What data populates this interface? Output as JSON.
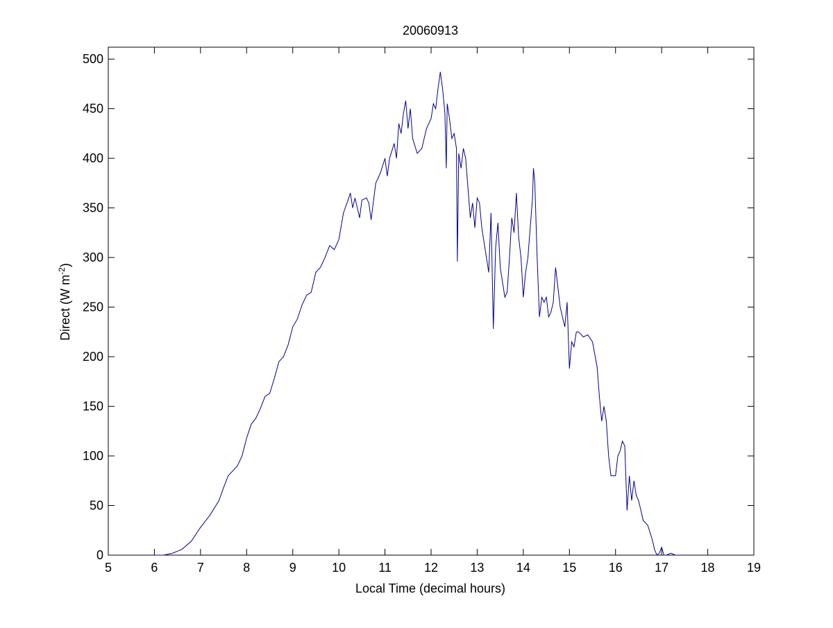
{
  "chart_data": {
    "type": "line",
    "title": "20060913",
    "xlabel": "Local Time (decimal hours)",
    "ylabel": [
      "Direct (W m",
      "-2",
      ")"
    ],
    "x": [
      6.0,
      6.2,
      6.4,
      6.6,
      6.8,
      7.0,
      7.2,
      7.4,
      7.5,
      7.6,
      7.8,
      7.9,
      8.0,
      8.1,
      8.2,
      8.3,
      8.4,
      8.5,
      8.6,
      8.7,
      8.8,
      8.9,
      9.0,
      9.1,
      9.2,
      9.3,
      9.4,
      9.5,
      9.6,
      9.7,
      9.8,
      9.9,
      10.0,
      10.1,
      10.2,
      10.25,
      10.3,
      10.35,
      10.45,
      10.5,
      10.6,
      10.65,
      10.7,
      10.8,
      10.9,
      11.0,
      11.05,
      11.1,
      11.2,
      11.25,
      11.3,
      11.35,
      11.4,
      11.45,
      11.5,
      11.55,
      11.6,
      11.7,
      11.8,
      11.9,
      12.0,
      12.05,
      12.1,
      12.15,
      12.2,
      12.25,
      12.3,
      12.33,
      12.35,
      12.4,
      12.45,
      12.5,
      12.55,
      12.57,
      12.6,
      12.65,
      12.7,
      12.75,
      12.8,
      12.85,
      12.9,
      12.95,
      13.0,
      13.05,
      13.1,
      13.2,
      13.25,
      13.3,
      13.35,
      13.4,
      13.45,
      13.5,
      13.6,
      13.65,
      13.7,
      13.75,
      13.8,
      13.85,
      13.9,
      13.95,
      14.0,
      14.05,
      14.1,
      14.15,
      14.2,
      14.22,
      14.25,
      14.3,
      14.35,
      14.4,
      14.45,
      14.5,
      14.55,
      14.6,
      14.65,
      14.7,
      14.75,
      14.8,
      14.85,
      14.9,
      14.95,
      15.0,
      15.05,
      15.1,
      15.15,
      15.2,
      15.3,
      15.4,
      15.5,
      15.6,
      15.65,
      15.7,
      15.75,
      15.8,
      15.85,
      15.9,
      16.0,
      16.05,
      16.1,
      16.15,
      16.2,
      16.25,
      16.3,
      16.35,
      16.4,
      16.45,
      16.5,
      16.55,
      16.6,
      16.7,
      16.8,
      16.85,
      16.9,
      16.95,
      17.0,
      17.05,
      17.1,
      17.2,
      17.3,
      17.35
    ],
    "values": [
      0,
      0,
      2,
      6,
      14,
      28,
      40,
      55,
      68,
      80,
      90,
      100,
      118,
      132,
      138,
      148,
      160,
      163,
      178,
      195,
      200,
      212,
      230,
      238,
      252,
      262,
      265,
      285,
      290,
      300,
      312,
      308,
      318,
      345,
      358,
      365,
      350,
      360,
      340,
      358,
      360,
      355,
      338,
      375,
      385,
      400,
      382,
      400,
      415,
      400,
      435,
      425,
      445,
      458,
      430,
      450,
      420,
      405,
      410,
      430,
      440,
      455,
      450,
      470,
      487,
      470,
      445,
      390,
      455,
      440,
      420,
      425,
      410,
      296,
      405,
      390,
      410,
      400,
      370,
      340,
      355,
      330,
      360,
      355,
      330,
      300,
      285,
      345,
      228,
      310,
      335,
      290,
      260,
      265,
      300,
      340,
      325,
      365,
      320,
      300,
      260,
      285,
      300,
      330,
      360,
      390,
      375,
      300,
      240,
      260,
      255,
      260,
      240,
      245,
      255,
      290,
      270,
      250,
      240,
      230,
      255,
      188,
      215,
      210,
      225,
      225,
      220,
      222,
      215,
      190,
      160,
      135,
      150,
      135,
      100,
      80,
      80,
      100,
      105,
      115,
      110,
      45,
      80,
      55,
      75,
      60,
      55,
      45,
      35,
      30,
      15,
      5,
      0,
      2,
      8,
      0,
      0,
      2,
      0,
      0
    ],
    "color": "#00008b",
    "xlim": [
      5,
      19
    ],
    "xticks": [
      5,
      6,
      7,
      8,
      9,
      10,
      11,
      12,
      13,
      14,
      15,
      16,
      17,
      18,
      19
    ],
    "ylim": [
      0,
      512
    ],
    "yticks": [
      0,
      50,
      100,
      150,
      200,
      250,
      300,
      350,
      400,
      450,
      500
    ]
  }
}
